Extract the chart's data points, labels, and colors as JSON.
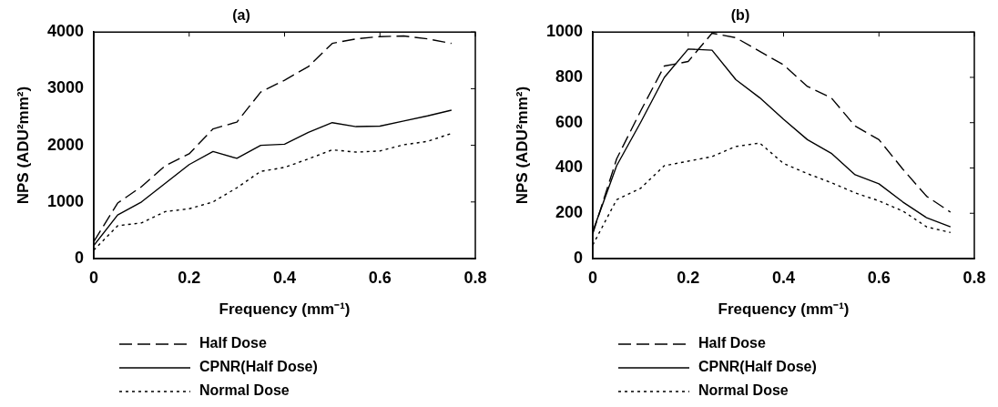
{
  "chart_data": [
    {
      "type": "line",
      "title": "(a)",
      "xlabel": "Frequency (mm⁻¹)",
      "ylabel": "NPS (ADU²mm²)",
      "x": [
        0,
        0.05,
        0.1,
        0.15,
        0.2,
        0.25,
        0.3,
        0.35,
        0.4,
        0.45,
        0.5,
        0.55,
        0.6,
        0.65,
        0.7,
        0.75
      ],
      "xlim": [
        0,
        0.8
      ],
      "xticks": [
        0,
        0.2,
        0.4,
        0.6,
        0.8
      ],
      "ylim": [
        0,
        4000
      ],
      "yticks": [
        0,
        1000,
        2000,
        3000,
        4000
      ],
      "grid": false,
      "legend": "bottom",
      "marker": "none",
      "series": [
        {
          "name": "Half Dose",
          "color": "#000000",
          "line_style": "dashed",
          "values": [
            300,
            980,
            1270,
            1640,
            1850,
            2290,
            2410,
            2940,
            3150,
            3390,
            3800,
            3880,
            3920,
            3930,
            3880,
            3800
          ]
        },
        {
          "name": "CPNR(Half Dose)",
          "color": "#000000",
          "line_style": "solid",
          "values": [
            230,
            770,
            1000,
            1330,
            1660,
            1890,
            1770,
            2000,
            2020,
            2230,
            2400,
            2330,
            2340,
            2430,
            2520,
            2620
          ]
        },
        {
          "name": "Normal Dose",
          "color": "#000000",
          "line_style": "dotted",
          "values": [
            150,
            580,
            630,
            830,
            880,
            1000,
            1250,
            1540,
            1610,
            1760,
            1920,
            1880,
            1900,
            2010,
            2070,
            2210
          ]
        }
      ]
    },
    {
      "type": "line",
      "title": "(b)",
      "xlabel": "Frequency (mm⁻¹)",
      "ylabel": "NPS (ADU²mm²)",
      "x": [
        0,
        0.05,
        0.1,
        0.15,
        0.2,
        0.25,
        0.3,
        0.35,
        0.4,
        0.45,
        0.5,
        0.55,
        0.6,
        0.65,
        0.7,
        0.75
      ],
      "xlim": [
        0,
        0.8
      ],
      "xticks": [
        0,
        0.2,
        0.4,
        0.6,
        0.8
      ],
      "ylim": [
        0,
        1000
      ],
      "yticks": [
        0,
        200,
        400,
        600,
        800,
        1000
      ],
      "grid": false,
      "legend": "bottom",
      "marker": "none",
      "series": [
        {
          "name": "Half Dose",
          "color": "#000000",
          "line_style": "dashed",
          "values": [
            110,
            440,
            650,
            850,
            870,
            995,
            975,
            915,
            855,
            760,
            710,
            585,
            525,
            395,
            275,
            205
          ]
        },
        {
          "name": "CPNR(Half Dose)",
          "color": "#000000",
          "line_style": "solid",
          "values": [
            120,
            410,
            600,
            800,
            925,
            920,
            790,
            710,
            615,
            525,
            465,
            370,
            330,
            250,
            180,
            140
          ]
        },
        {
          "name": "Normal Dose",
          "color": "#000000",
          "line_style": "dotted",
          "values": [
            60,
            260,
            310,
            410,
            430,
            450,
            495,
            510,
            420,
            375,
            335,
            290,
            255,
            210,
            140,
            115
          ]
        }
      ]
    }
  ]
}
